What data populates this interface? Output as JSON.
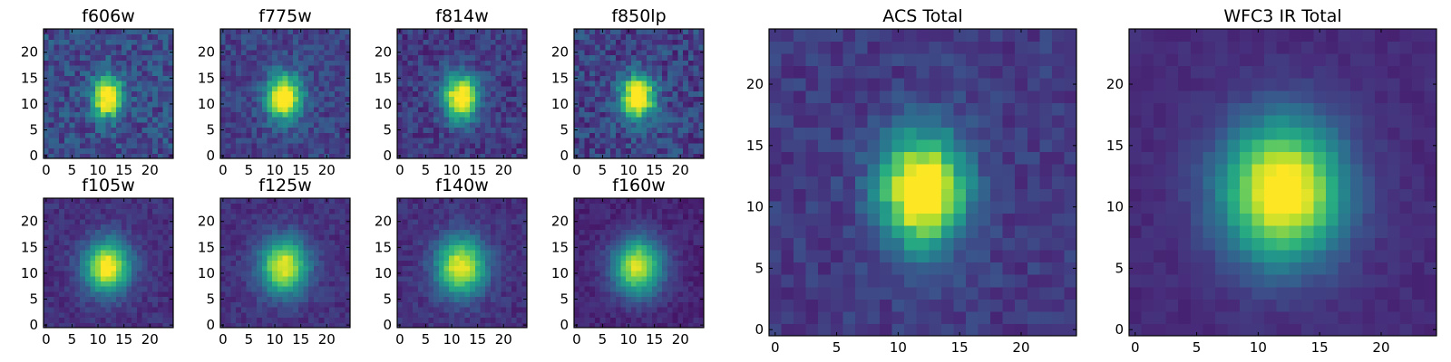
{
  "figure": {
    "colormap": "viridis",
    "colormap_stops": [
      "#440154",
      "#472d7b",
      "#3b528b",
      "#2c728e",
      "#21918c",
      "#28ae80",
      "#5ec962",
      "#addc30",
      "#fde725"
    ]
  },
  "chart_data": [
    {
      "type": "heatmap",
      "title": "f606w",
      "grid_size": 25,
      "center": [
        11.8,
        11.3
      ],
      "sigma": [
        2.0,
        2.8
      ],
      "peak": 0.9,
      "background": 0.23,
      "noise": 0.13,
      "xticks": [
        0,
        5,
        10,
        15,
        20
      ],
      "yticks": [
        0,
        5,
        10,
        15,
        20
      ],
      "xlim": [
        -0.5,
        24.5
      ],
      "ylim": [
        -0.5,
        24.5
      ]
    },
    {
      "type": "heatmap",
      "title": "f775w",
      "grid_size": 25,
      "center": [
        11.8,
        11.3
      ],
      "sigma": [
        2.3,
        3.0
      ],
      "peak": 0.95,
      "background": 0.2,
      "noise": 0.1,
      "xticks": [
        0,
        5,
        10,
        15,
        20
      ],
      "yticks": [
        0,
        5,
        10,
        15,
        20
      ],
      "xlim": [
        -0.5,
        24.5
      ],
      "ylim": [
        -0.5,
        24.5
      ]
    },
    {
      "type": "heatmap",
      "title": "f814w",
      "grid_size": 25,
      "center": [
        11.8,
        11.3
      ],
      "sigma": [
        2.3,
        3.1
      ],
      "peak": 0.95,
      "background": 0.17,
      "noise": 0.1,
      "xticks": [
        0,
        5,
        10,
        15,
        20
      ],
      "yticks": [
        0,
        5,
        10,
        15,
        20
      ],
      "xlim": [
        -0.5,
        24.5
      ],
      "ylim": [
        -0.5,
        24.5
      ]
    },
    {
      "type": "heatmap",
      "title": "f850lp",
      "grid_size": 25,
      "center": [
        11.8,
        11.3
      ],
      "sigma": [
        2.3,
        3.0
      ],
      "peak": 0.95,
      "background": 0.2,
      "noise": 0.13,
      "xticks": [
        0,
        5,
        10,
        15,
        20
      ],
      "yticks": [
        0,
        5,
        10,
        15,
        20
      ],
      "xlim": [
        -0.5,
        24.5
      ],
      "ylim": [
        -0.5,
        24.5
      ]
    },
    {
      "type": "heatmap",
      "title": "f105w",
      "grid_size": 25,
      "center": [
        11.8,
        11.3
      ],
      "sigma": [
        3.0,
        3.5
      ],
      "peak": 0.9,
      "background": 0.14,
      "noise": 0.06,
      "xticks": [
        0,
        5,
        10,
        15,
        20
      ],
      "yticks": [
        0,
        5,
        10,
        15,
        20
      ],
      "xlim": [
        -0.5,
        24.5
      ],
      "ylim": [
        -0.5,
        24.5
      ]
    },
    {
      "type": "heatmap",
      "title": "f125w",
      "grid_size": 25,
      "center": [
        11.8,
        11.3
      ],
      "sigma": [
        3.2,
        3.7
      ],
      "peak": 0.85,
      "background": 0.14,
      "noise": 0.06,
      "xticks": [
        0,
        5,
        10,
        15,
        20
      ],
      "yticks": [
        0,
        5,
        10,
        15,
        20
      ],
      "xlim": [
        -0.5,
        24.5
      ],
      "ylim": [
        -0.5,
        24.5
      ]
    },
    {
      "type": "heatmap",
      "title": "f140w",
      "grid_size": 25,
      "center": [
        11.8,
        11.3
      ],
      "sigma": [
        3.3,
        3.8
      ],
      "peak": 0.85,
      "background": 0.14,
      "noise": 0.06,
      "xticks": [
        0,
        5,
        10,
        15,
        20
      ],
      "yticks": [
        0,
        5,
        10,
        15,
        20
      ],
      "xlim": [
        -0.5,
        24.5
      ],
      "ylim": [
        -0.5,
        24.5
      ]
    },
    {
      "type": "heatmap",
      "title": "f160w",
      "grid_size": 25,
      "center": [
        11.8,
        11.3
      ],
      "sigma": [
        3.3,
        3.8
      ],
      "peak": 0.85,
      "background": 0.1,
      "noise": 0.05,
      "xticks": [
        0,
        5,
        10,
        15,
        20
      ],
      "yticks": [
        0,
        5,
        10,
        15,
        20
      ],
      "xlim": [
        -0.5,
        24.5
      ],
      "ylim": [
        -0.5,
        24.5
      ]
    },
    {
      "type": "heatmap",
      "title": "ACS Total",
      "grid_size": 25,
      "center": [
        12.0,
        11.3
      ],
      "sigma": [
        2.4,
        3.2
      ],
      "peak": 1.0,
      "background": 0.17,
      "noise": 0.07,
      "xticks": [
        0,
        5,
        10,
        15,
        20
      ],
      "yticks": [
        0,
        5,
        10,
        15,
        20
      ],
      "xlim": [
        -0.5,
        24.5
      ],
      "ylim": [
        -0.5,
        24.5
      ]
    },
    {
      "type": "heatmap",
      "title": "WFC3 IR Total",
      "grid_size": 25,
      "center": [
        12.0,
        11.3
      ],
      "sigma": [
        3.4,
        3.9
      ],
      "peak": 1.0,
      "background": 0.12,
      "noise": 0.03,
      "xticks": [
        0,
        5,
        10,
        15,
        20
      ],
      "yticks": [
        0,
        5,
        10,
        15,
        20
      ],
      "xlim": [
        -0.5,
        24.5
      ],
      "ylim": [
        -0.5,
        24.5
      ]
    }
  ]
}
